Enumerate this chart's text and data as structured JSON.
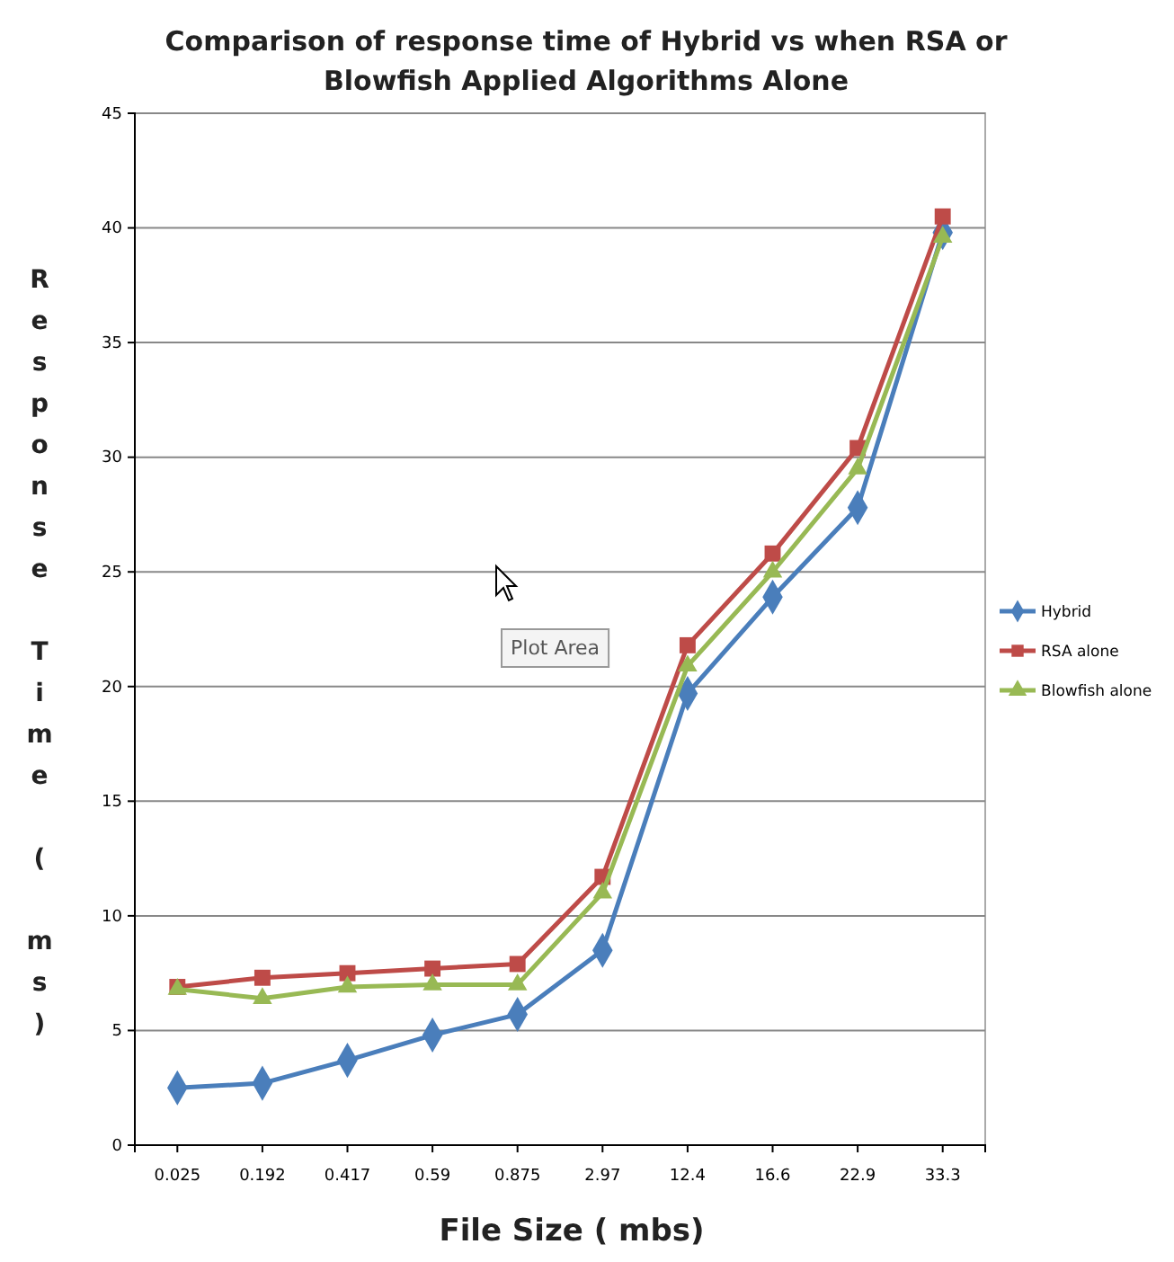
{
  "chart_data": {
    "type": "line",
    "title": "Comparison of response time of  Hybrid vs when RSA or Blowfish Applied Algorithms Alone",
    "xlabel": "File Size ( mbs)",
    "ylabel": "Response Time ( ms)",
    "categories": [
      "0.025",
      "0.192",
      "0.417",
      "0.59",
      "0.875",
      "2.97",
      "12.4",
      "16.6",
      "22.9",
      "33.3"
    ],
    "series": [
      {
        "name": "Hybrid",
        "color": "#4a7ebb",
        "marker": "diamond",
        "values": [
          2.5,
          2.7,
          3.7,
          4.8,
          5.7,
          8.5,
          19.7,
          23.9,
          27.8,
          39.8
        ]
      },
      {
        "name": "RSA alone",
        "color": "#be4b48",
        "marker": "square",
        "values": [
          6.9,
          7.3,
          7.5,
          7.7,
          7.9,
          11.7,
          21.8,
          25.8,
          30.4,
          40.5
        ]
      },
      {
        "name": "Blowfish alone",
        "color": "#98b954",
        "marker": "triangle",
        "values": [
          6.8,
          6.4,
          6.9,
          7.0,
          7.0,
          11.0,
          20.9,
          25.0,
          29.5,
          39.6
        ]
      }
    ],
    "ylim": [
      0,
      45
    ],
    "yticks": [
      0,
      5,
      10,
      15,
      20,
      25,
      30,
      35,
      40,
      45
    ],
    "grid": "y",
    "legend": "right",
    "line_style": "solid",
    "annotations": [
      "Plot Area"
    ]
  }
}
